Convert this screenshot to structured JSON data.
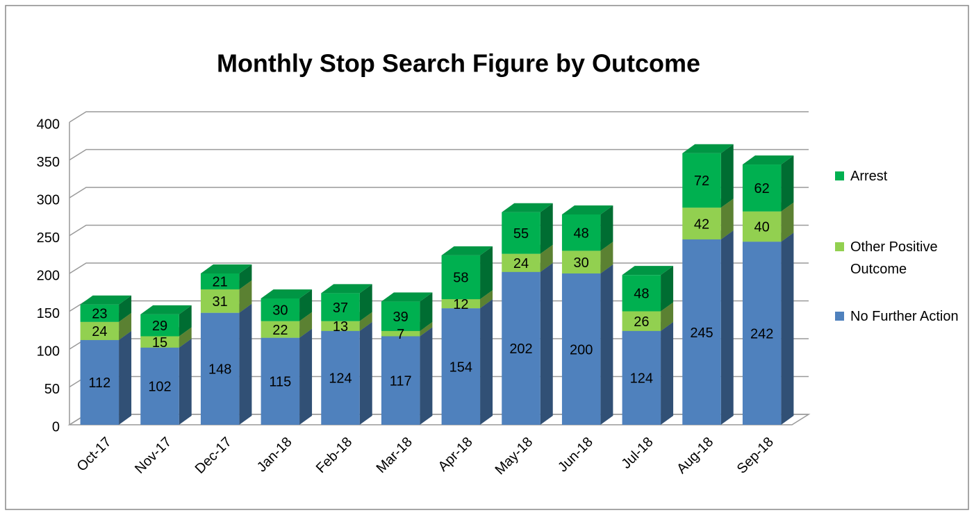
{
  "chart_data": {
    "type": "bar3d_stacked",
    "title": "Monthly Stop Search Figure by Outcome",
    "categories": [
      "Oct-17",
      "Nov-17",
      "Dec-17",
      "Jan-18",
      "Feb-18",
      "Mar-18",
      "Apr-18",
      "May-18",
      "Jun-18",
      "Jul-18",
      "Aug-18",
      "Sep-18"
    ],
    "series": [
      {
        "name": "No Further Action",
        "color": "#4f81bd",
        "values": [
          112,
          102,
          148,
          115,
          124,
          117,
          154,
          202,
          200,
          124,
          245,
          242
        ]
      },
      {
        "name": "Other Positive Outcome",
        "color": "#92d050",
        "values": [
          24,
          15,
          31,
          22,
          13,
          7,
          12,
          24,
          30,
          26,
          42,
          40
        ]
      },
      {
        "name": "Arrest",
        "color": "#00b050",
        "values": [
          23,
          29,
          21,
          30,
          37,
          39,
          58,
          55,
          48,
          48,
          72,
          62
        ]
      }
    ],
    "ylim": [
      0,
      400
    ],
    "yticks": [
      0,
      50,
      100,
      150,
      200,
      250,
      300,
      350,
      400
    ],
    "grid": true,
    "legend": "right"
  }
}
